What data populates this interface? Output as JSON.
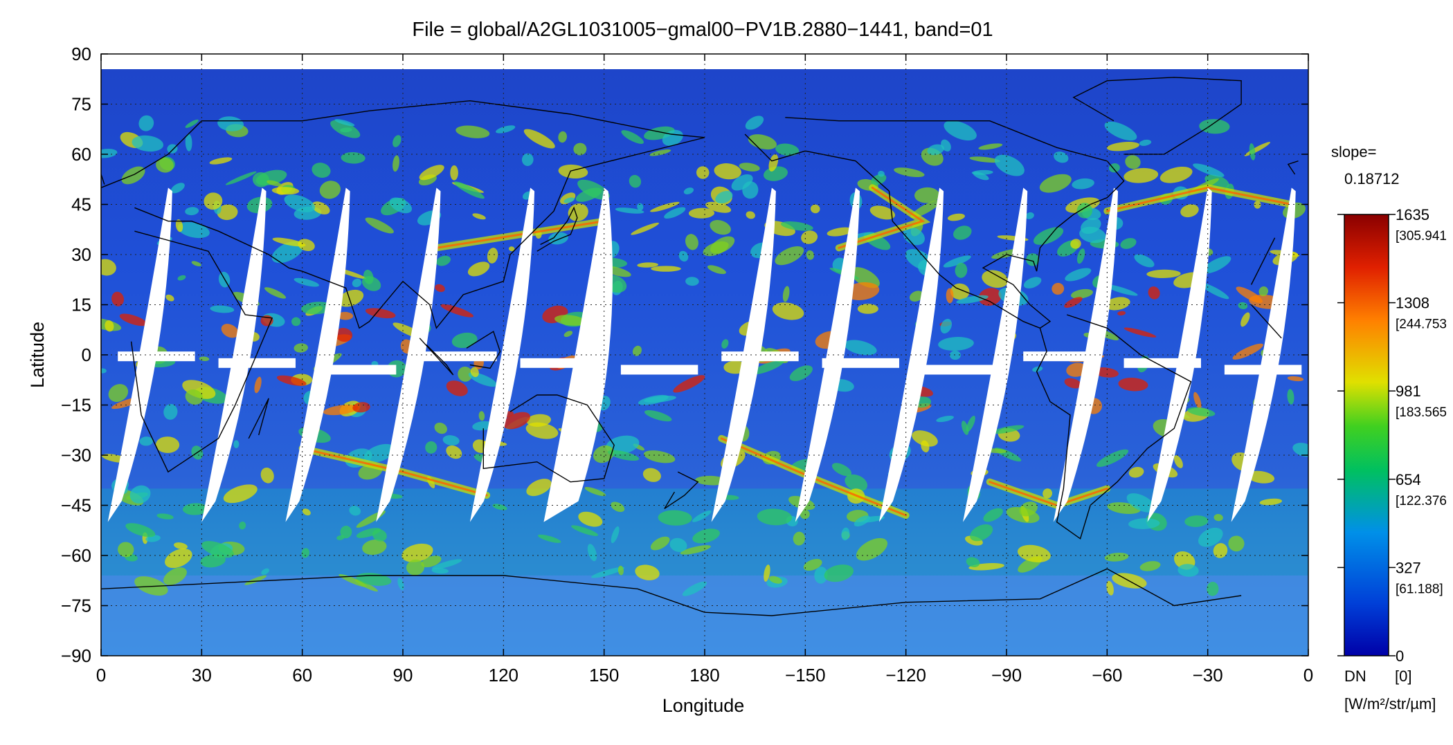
{
  "title": "File = global/A2GL1031005−gmal00−PV1B.2880−1441, band=01",
  "map": {
    "projection": "equirectangular",
    "x_axis_label": "Longitude",
    "y_axis_label": "Latitude",
    "x_tick_labels": [
      "0",
      "30",
      "60",
      "90",
      "120",
      "150",
      "180",
      "−150",
      "−120",
      "−90",
      "−60",
      "−30",
      "0"
    ],
    "y_tick_labels": [
      "90",
      "75",
      "60",
      "45",
      "30",
      "15",
      "0",
      "−15",
      "−30",
      "−45",
      "−60",
      "−75",
      "−90"
    ],
    "grid": "dotted",
    "ocean_color": "#1f4fd8",
    "no_data_color": "#ffffff",
    "coastline_color": "#000000"
  },
  "colorbar": {
    "slope_label": "slope=",
    "slope_value": "0.18712",
    "ticks": [
      {
        "dn": "1635",
        "radiance": "[305.941"
      },
      {
        "dn": "1308",
        "radiance": "[244.753"
      },
      {
        "dn": "981",
        "radiance": "[183.565"
      },
      {
        "dn": "654",
        "radiance": "[122.376"
      },
      {
        "dn": "327",
        "radiance": "[61.188]"
      },
      {
        "dn": "0",
        "radiance": ""
      }
    ],
    "dn_label": "DN",
    "zero_radiance": "[0]",
    "units": "[W/m²/str/µm]",
    "colors": [
      "#0000a8",
      "#0050e0",
      "#00a0e8",
      "#00c060",
      "#40d020",
      "#e0e000",
      "#ff8000",
      "#e02000",
      "#900000"
    ]
  }
}
